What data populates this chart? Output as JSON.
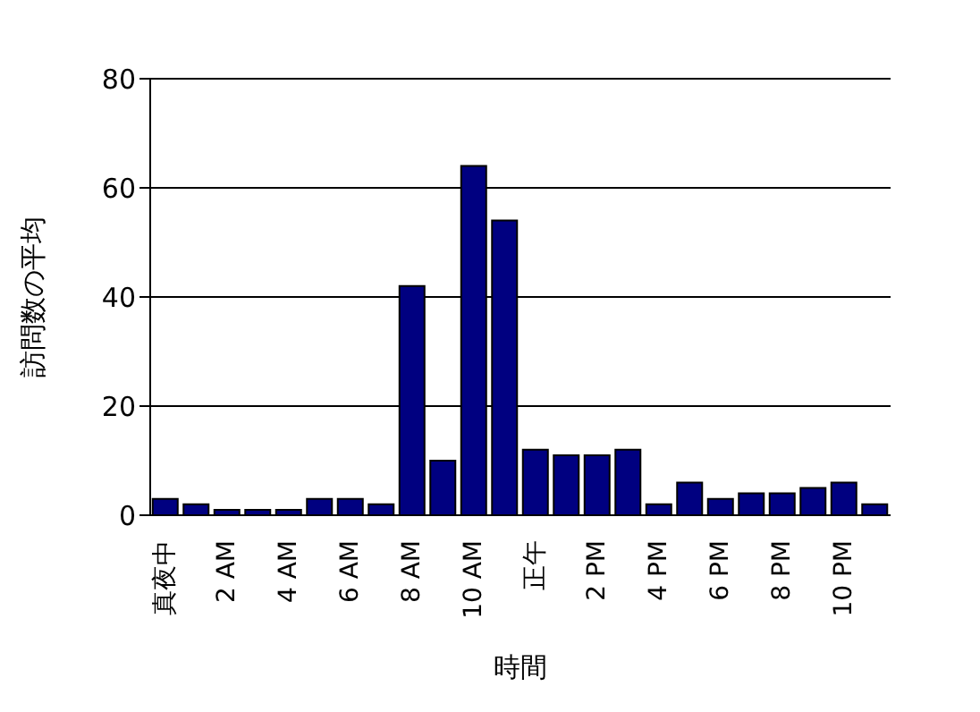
{
  "chart_data": {
    "type": "bar",
    "xlabel": "時間",
    "ylabel": "訪問数の平均",
    "categories": [
      "真夜中",
      null,
      "2 AM",
      null,
      "4 AM",
      null,
      "6 AM",
      null,
      "8 AM",
      null,
      "10 AM",
      null,
      "正午",
      null,
      "2 PM",
      null,
      "4 PM",
      null,
      "6 PM",
      null,
      "8 PM",
      null,
      "10 PM",
      null
    ],
    "values": [
      3,
      2,
      1,
      1,
      1,
      3,
      3,
      2,
      42,
      10,
      64,
      54,
      12,
      11,
      11,
      12,
      2,
      6,
      3,
      4,
      4,
      5,
      6,
      2
    ],
    "color": "#000080",
    "ylim": [
      0,
      80
    ],
    "yticks": [
      0,
      20,
      40,
      60,
      80
    ],
    "grid": "y"
  }
}
